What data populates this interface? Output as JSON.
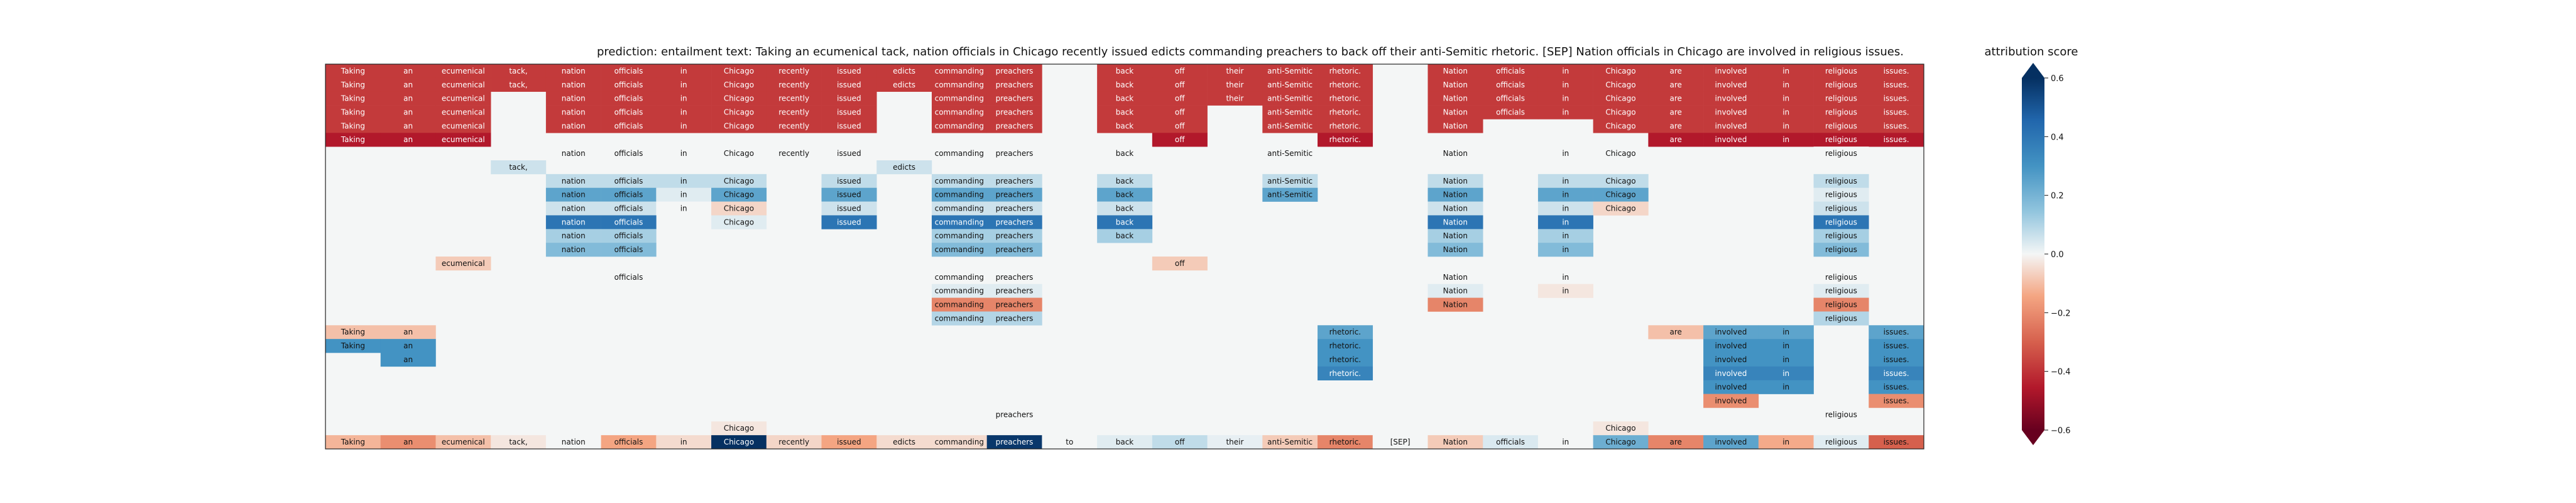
{
  "chart_data": {
    "type": "heatmap",
    "title": "prediction:  entailment     text:  Taking an ecumenical tack, nation officials in Chicago recently issued edicts commanding preachers to back off their anti-Semitic rhetoric. [SEP] Nation officials in Chicago are involved in religious issues.",
    "tokens": [
      "Taking",
      "an",
      "ecumenical",
      "tack,",
      "nation",
      "officials",
      "in",
      "Chicago",
      "recently",
      "issued",
      "edicts",
      "commanding",
      "preachers",
      "to",
      "back",
      "off",
      "their",
      "anti-Semitic",
      "rhetoric.",
      "[SEP]",
      "Nation",
      "officials",
      "in",
      "Chicago",
      "are",
      "involved",
      "in",
      "religious",
      "issues."
    ],
    "rows": [
      {
        "idx": [
          0,
          1,
          2,
          3,
          4,
          5,
          6,
          7,
          8,
          9,
          10,
          11,
          12,
          14,
          15,
          16,
          17,
          18,
          20,
          21,
          22,
          23,
          24,
          25,
          26,
          27,
          28
        ],
        "values": [
          -0.38,
          -0.38,
          -0.38,
          -0.38,
          -0.38,
          -0.38,
          -0.38,
          -0.38,
          -0.38,
          -0.38,
          -0.38,
          -0.38,
          -0.38,
          -0.38,
          -0.38,
          -0.38,
          -0.38,
          -0.38,
          -0.38,
          -0.38,
          -0.38,
          -0.38,
          -0.38,
          -0.38,
          -0.38,
          -0.38,
          -0.38
        ]
      },
      {
        "idx": [
          0,
          1,
          2,
          3,
          4,
          5,
          6,
          7,
          8,
          9,
          10,
          11,
          12,
          14,
          15,
          16,
          17,
          18,
          20,
          21,
          22,
          23,
          24,
          25,
          26,
          27,
          28
        ],
        "values": [
          -0.38,
          -0.38,
          -0.38,
          -0.38,
          -0.38,
          -0.38,
          -0.38,
          -0.38,
          -0.38,
          -0.38,
          -0.38,
          -0.38,
          -0.38,
          -0.38,
          -0.38,
          -0.38,
          -0.38,
          -0.38,
          -0.38,
          -0.38,
          -0.38,
          -0.38,
          -0.38,
          -0.38,
          -0.38,
          -0.38,
          -0.38
        ]
      },
      {
        "idx": [
          0,
          1,
          2,
          4,
          5,
          6,
          7,
          8,
          9,
          11,
          12,
          14,
          15,
          16,
          17,
          18,
          20,
          21,
          22,
          23,
          24,
          25,
          26,
          27,
          28
        ],
        "values": [
          -0.38,
          -0.38,
          -0.38,
          -0.38,
          -0.38,
          -0.38,
          -0.38,
          -0.38,
          -0.38,
          -0.38,
          -0.38,
          -0.38,
          -0.38,
          -0.38,
          -0.38,
          -0.38,
          -0.38,
          -0.38,
          -0.38,
          -0.38,
          -0.38,
          -0.38,
          -0.38,
          -0.38,
          -0.38
        ]
      },
      {
        "idx": [
          0,
          1,
          2,
          4,
          5,
          6,
          7,
          8,
          9,
          11,
          12,
          14,
          15,
          17,
          18,
          20,
          21,
          22,
          23,
          24,
          25,
          26,
          27,
          28
        ],
        "values": [
          -0.38,
          -0.38,
          -0.38,
          -0.38,
          -0.38,
          -0.38,
          -0.38,
          -0.38,
          -0.38,
          -0.38,
          -0.38,
          -0.38,
          -0.38,
          -0.38,
          -0.38,
          -0.38,
          -0.38,
          -0.38,
          -0.38,
          -0.38,
          -0.38,
          -0.38,
          -0.38,
          -0.38
        ]
      },
      {
        "idx": [
          0,
          1,
          2,
          4,
          5,
          6,
          7,
          8,
          9,
          11,
          12,
          14,
          15,
          17,
          18,
          20,
          23,
          24,
          25,
          26,
          27,
          28
        ],
        "values": [
          -0.38,
          -0.38,
          -0.38,
          -0.38,
          -0.38,
          -0.38,
          -0.38,
          -0.38,
          -0.38,
          -0.38,
          -0.38,
          -0.38,
          -0.38,
          -0.38,
          -0.38,
          -0.38,
          -0.38,
          -0.38,
          -0.38,
          -0.38,
          -0.38,
          -0.38
        ]
      },
      {
        "idx": [
          0,
          1,
          2,
          15,
          18,
          24,
          25,
          26,
          27,
          28
        ],
        "values": [
          -0.45,
          -0.45,
          -0.45,
          -0.45,
          -0.45,
          -0.45,
          -0.45,
          -0.45,
          -0.45,
          -0.45
        ]
      },
      {
        "idx": [
          4,
          5,
          6,
          7,
          8,
          9,
          11,
          12,
          14,
          17,
          20,
          22,
          23,
          27
        ],
        "values": [
          0.0,
          0.0,
          0.0,
          0.0,
          0.0,
          0.0,
          0.0,
          0.0,
          0.0,
          0.0,
          0.0,
          0.0,
          0.0,
          0.0
        ]
      },
      {
        "idx": [
          3,
          10
        ],
        "values": [
          0.06,
          0.06
        ]
      },
      {
        "idx": [
          4,
          5,
          6,
          7,
          9,
          11,
          12,
          14,
          17,
          20,
          22,
          23,
          27
        ],
        "values": [
          0.08,
          0.08,
          0.08,
          0.08,
          0.08,
          0.08,
          0.08,
          0.08,
          0.08,
          0.08,
          0.08,
          0.08,
          0.08
        ]
      },
      {
        "idx": [
          4,
          5,
          6,
          7,
          9,
          11,
          12,
          14,
          17,
          20,
          22,
          23,
          27
        ],
        "values": [
          0.25,
          0.25,
          0.03,
          0.25,
          0.25,
          0.25,
          0.25,
          0.25,
          0.25,
          0.25,
          0.25,
          0.25,
          0.03
        ]
      },
      {
        "idx": [
          4,
          5,
          6,
          7,
          9,
          11,
          12,
          14,
          20,
          22,
          23,
          27
        ],
        "values": [
          0.06,
          0.06,
          0.0,
          -0.06,
          0.06,
          0.06,
          0.06,
          0.06,
          0.06,
          0.06,
          -0.06,
          0.06
        ]
      },
      {
        "idx": [
          4,
          5,
          7,
          9,
          11,
          12,
          14,
          20,
          22,
          27
        ],
        "values": [
          0.4,
          0.4,
          0.03,
          0.4,
          0.4,
          0.4,
          0.4,
          0.4,
          0.4,
          0.4
        ]
      },
      {
        "idx": [
          4,
          5,
          11,
          12,
          14,
          20,
          22,
          27
        ],
        "values": [
          0.12,
          0.12,
          0.12,
          0.12,
          0.12,
          0.12,
          0.12,
          0.12
        ]
      },
      {
        "idx": [
          4,
          5,
          11,
          12,
          20,
          22,
          27
        ],
        "values": [
          0.18,
          0.18,
          0.18,
          0.18,
          0.18,
          0.18,
          0.18
        ]
      },
      {
        "idx": [
          2,
          15
        ],
        "values": [
          -0.08,
          -0.08
        ]
      },
      {
        "idx": [
          5,
          11,
          12,
          20,
          22,
          27
        ],
        "values": [
          0.0,
          0.0,
          0.0,
          0.0,
          0.0,
          0.0
        ]
      },
      {
        "idx": [
          11,
          12,
          20,
          22,
          27
        ],
        "values": [
          0.03,
          0.03,
          0.03,
          -0.03,
          0.03
        ]
      },
      {
        "idx": [
          11,
          12,
          20,
          27
        ],
        "values": [
          -0.22,
          -0.22,
          -0.22,
          -0.22
        ]
      },
      {
        "idx": [
          11,
          12,
          27
        ],
        "values": [
          0.1,
          0.1,
          0.1
        ]
      },
      {
        "idx": [
          0,
          1,
          18,
          24,
          25,
          26,
          28
        ],
        "values": [
          -0.1,
          -0.1,
          0.25,
          -0.1,
          0.25,
          0.25,
          0.25
        ]
      },
      {
        "idx": [
          0,
          1,
          18,
          25,
          26,
          28
        ],
        "values": [
          0.3,
          0.3,
          0.3,
          0.3,
          0.3,
          0.3
        ]
      },
      {
        "idx": [
          1,
          18,
          25,
          26,
          28
        ],
        "values": [
          0.3,
          0.3,
          0.3,
          0.3,
          0.3
        ]
      },
      {
        "idx": [
          18,
          25,
          26,
          28
        ],
        "values": [
          0.35,
          0.35,
          0.35,
          0.35
        ]
      },
      {
        "idx": [
          25,
          26,
          28
        ],
        "values": [
          0.3,
          0.3,
          0.3
        ]
      },
      {
        "idx": [
          25,
          28
        ],
        "values": [
          -0.2,
          -0.2
        ]
      },
      {
        "idx": [
          12,
          27
        ],
        "values": [
          0.0,
          0.0
        ]
      },
      {
        "idx": [
          7,
          23
        ],
        "values": [
          -0.03,
          -0.03
        ]
      },
      {
        "idx": [
          0,
          1,
          2,
          3,
          4,
          5,
          6,
          7,
          8,
          9,
          10,
          11,
          12,
          13,
          14,
          15,
          16,
          17,
          18,
          19,
          20,
          21,
          22,
          23,
          24,
          25,
          26,
          27,
          28
        ],
        "values": [
          -0.12,
          -0.2,
          -0.1,
          -0.03,
          0.0,
          -0.15,
          -0.05,
          0.6,
          -0.06,
          -0.15,
          -0.05,
          -0.05,
          0.58,
          0.0,
          0.03,
          0.08,
          0.02,
          -0.08,
          -0.22,
          0.0,
          -0.08,
          0.04,
          0.0,
          0.22,
          -0.22,
          0.25,
          -0.14,
          0.03,
          -0.3
        ]
      }
    ],
    "colorbar": {
      "label": "attribution score",
      "min": -0.6,
      "max": 0.6,
      "ticks": [
        "0.6",
        "0.4",
        "0.2",
        "0.0",
        "−0.2",
        "−0.4",
        "−0.6"
      ],
      "tick_values": [
        0.6,
        0.4,
        0.2,
        0.0,
        -0.2,
        -0.4,
        -0.6
      ]
    },
    "colors": {
      "background": "#f4f6f6",
      "negative": "#b2182b",
      "positive": "#2166ac"
    }
  }
}
